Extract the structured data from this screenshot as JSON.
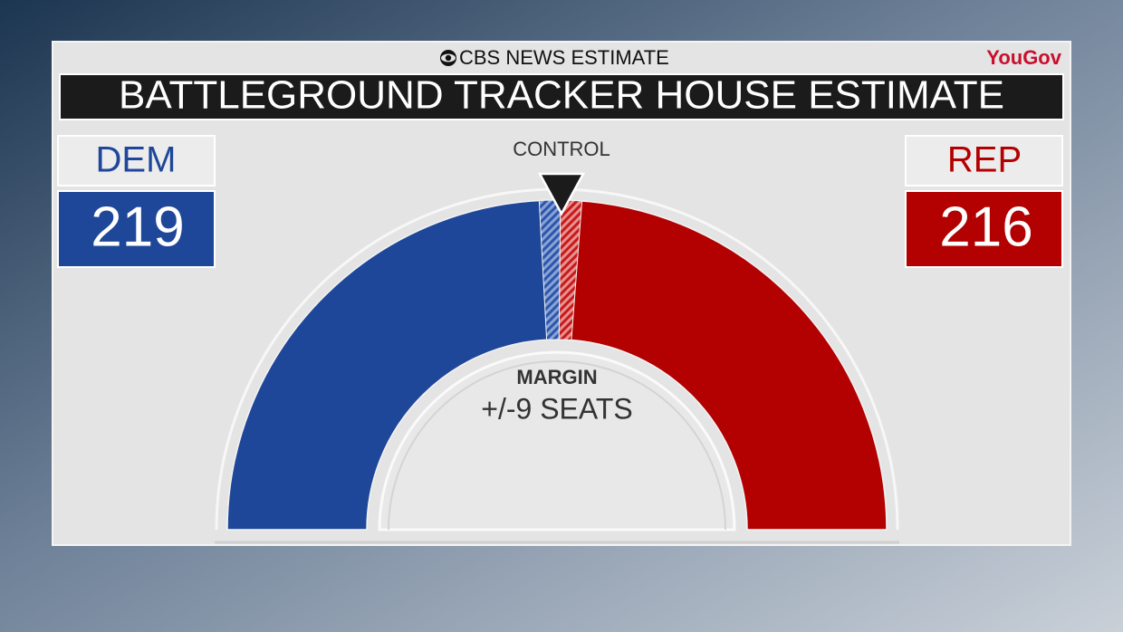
{
  "chart_data": {
    "type": "half-donut",
    "super_title": "CBS NEWS ESTIMATE",
    "brand": "YouGov",
    "title": "BATTLEGROUND TRACKER HOUSE ESTIMATE",
    "control_label": "CONTROL",
    "categories": [
      "DEM",
      "REP"
    ],
    "values": [
      219,
      216
    ],
    "colors": [
      "#1f4799",
      "#b30000"
    ],
    "margin": {
      "label": "MARGIN",
      "value": 9,
      "value_label": "+/-9 SEATS"
    }
  }
}
